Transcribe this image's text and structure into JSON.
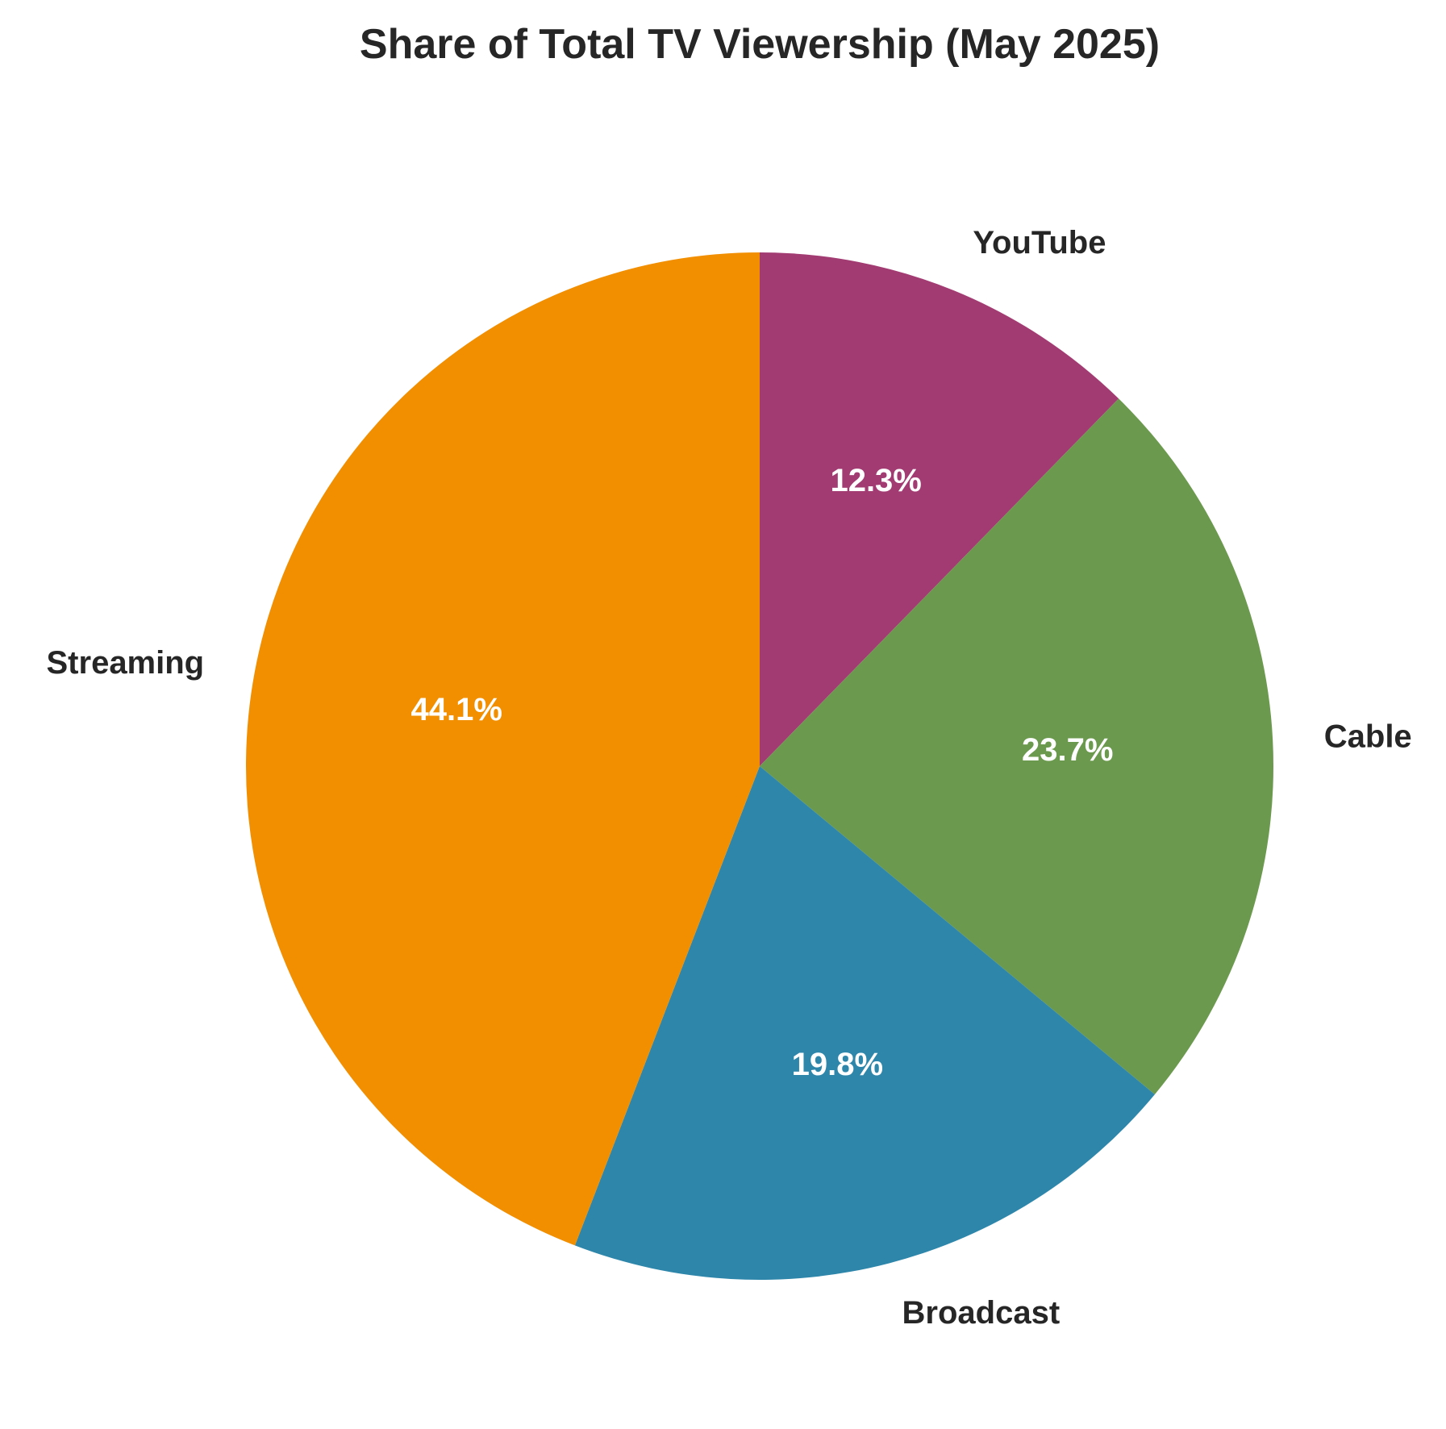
{
  "chart_data": {
    "type": "pie",
    "title": "Share of Total TV Viewership (May 2025)",
    "start": "top",
    "direction": "clockwise",
    "slices": [
      {
        "label": "YouTube",
        "value": 12.3,
        "pct_label": "12.3%",
        "color": "#A23B72"
      },
      {
        "label": "Cable",
        "value": 23.7,
        "pct_label": "23.7%",
        "color": "#6B994D"
      },
      {
        "label": "Broadcast",
        "value": 19.8,
        "pct_label": "19.8%",
        "color": "#2E86AB"
      },
      {
        "label": "Streaming",
        "value": 44.1,
        "pct_label": "44.1%",
        "color": "#F18F01"
      }
    ]
  }
}
